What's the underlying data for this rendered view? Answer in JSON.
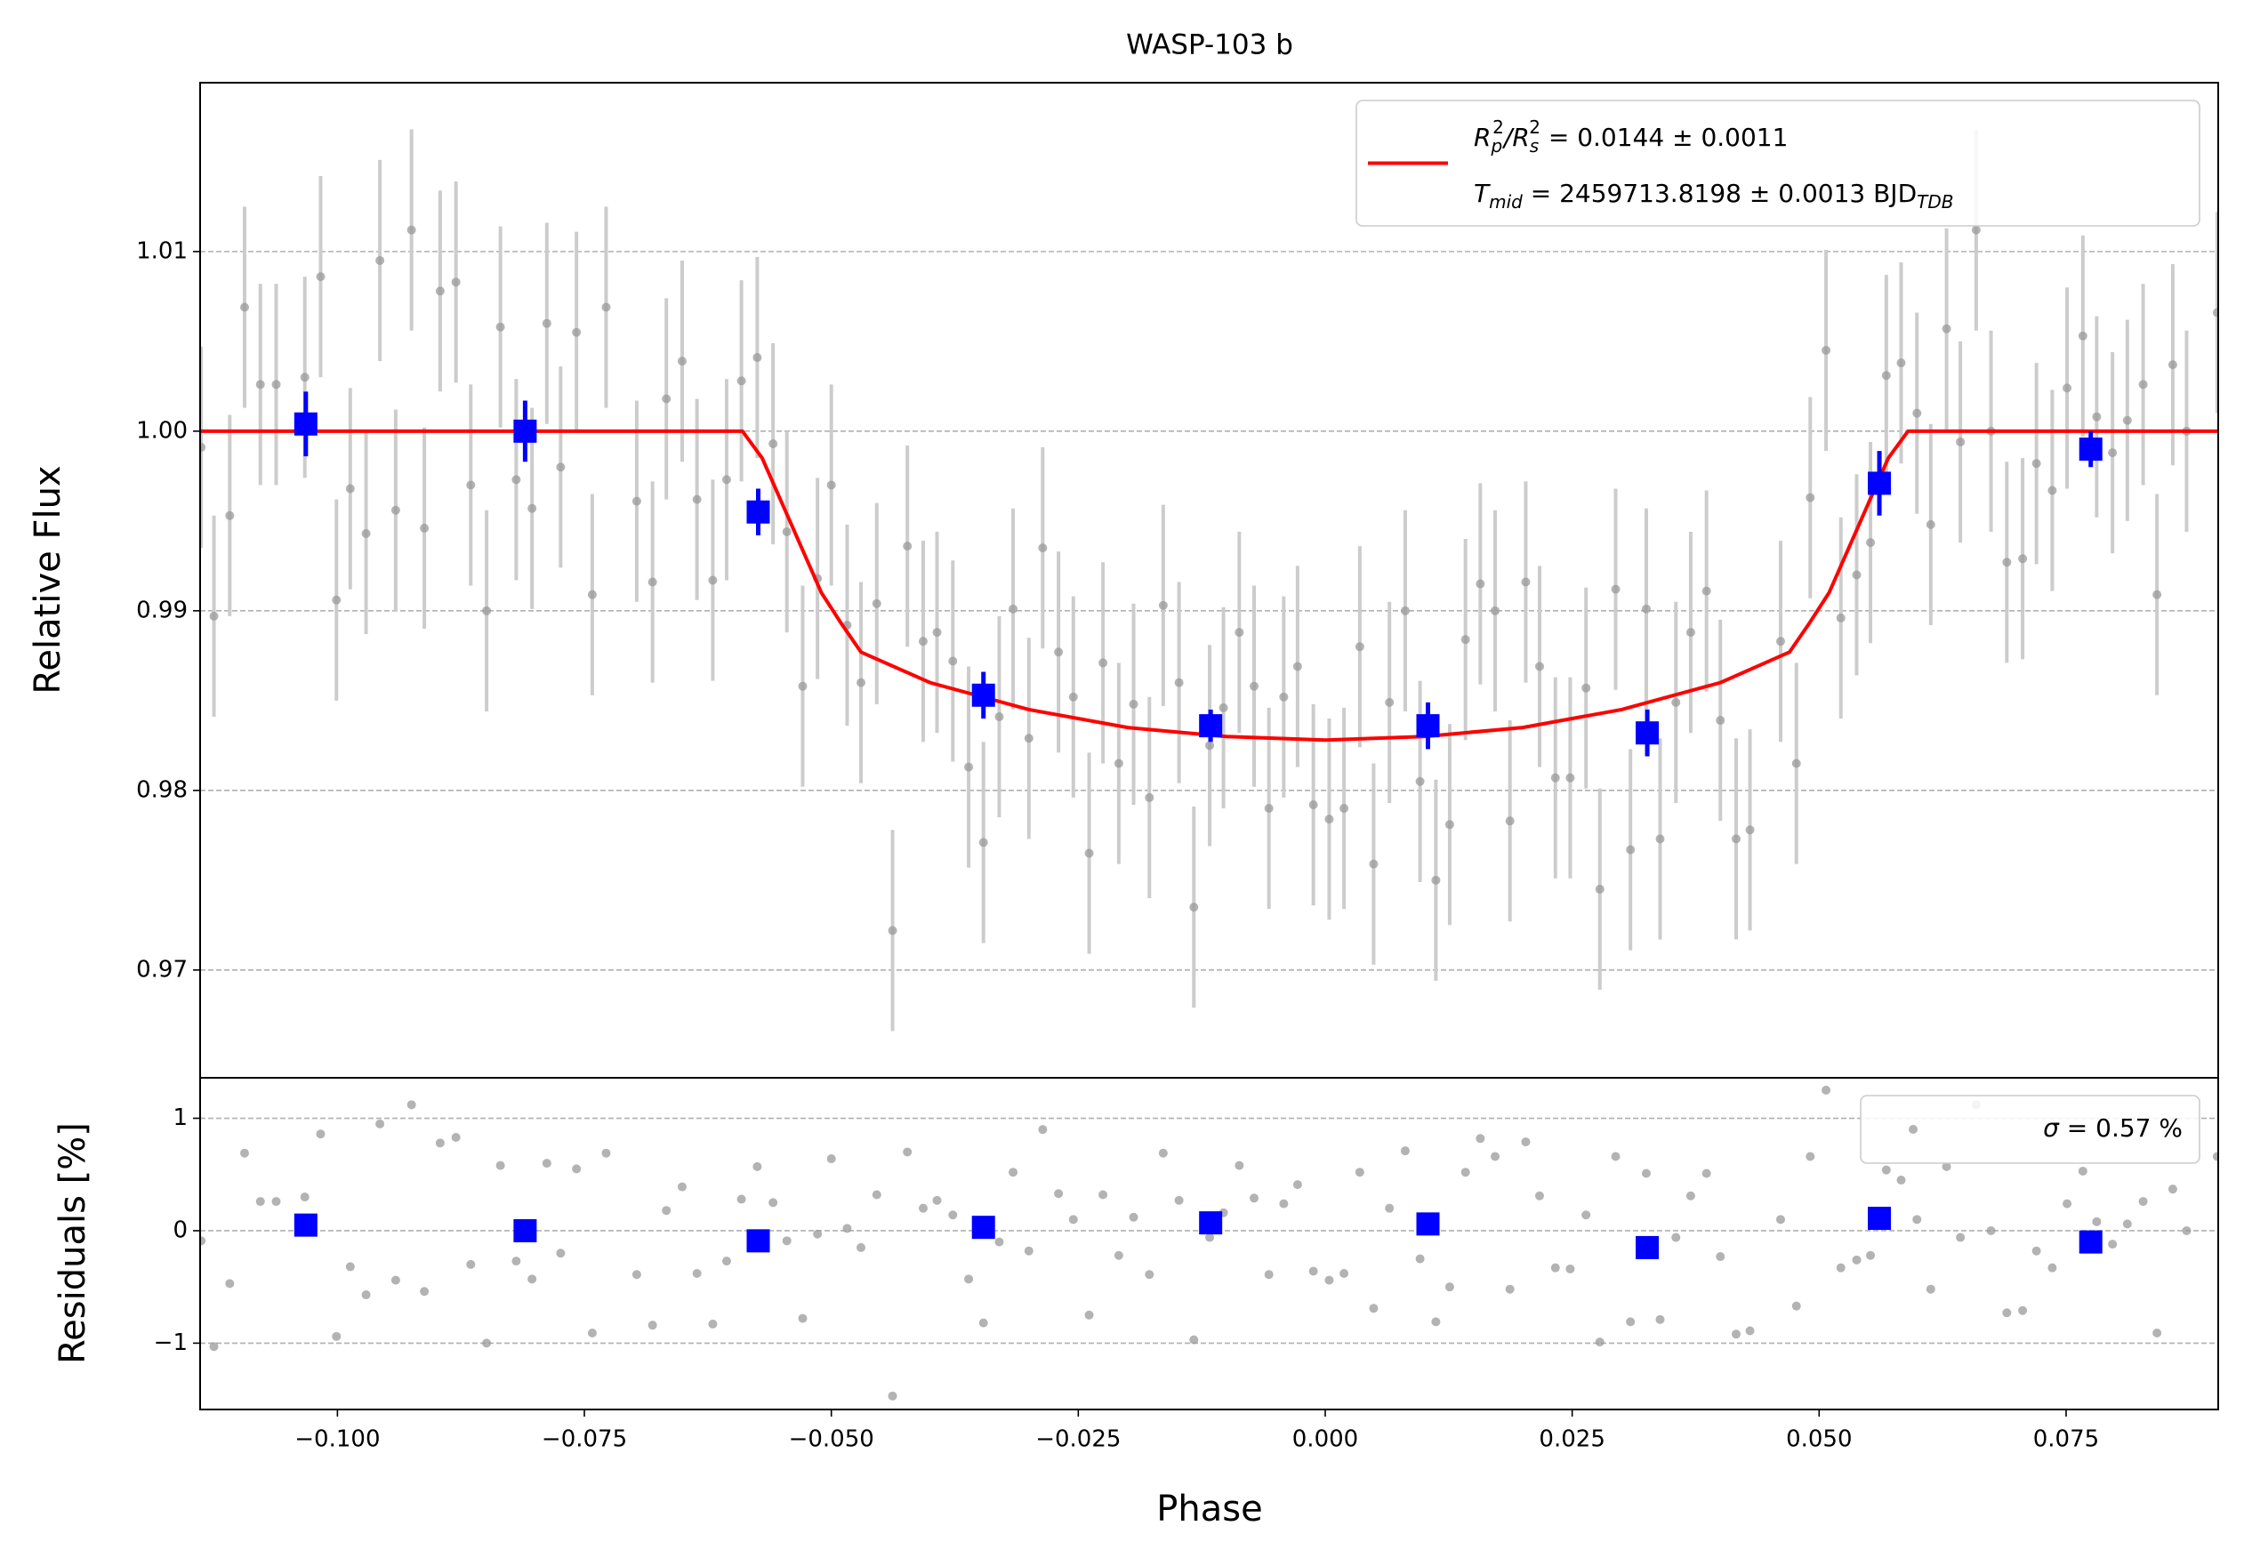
{
  "chart_data": [
    {
      "type": "scatter",
      "title": "WASP-103 b",
      "ylabel": "Relative Flux",
      "xlim": [
        -0.1139,
        0.0904
      ],
      "ylim": [
        0.964,
        1.0194
      ],
      "yticks": [
        0.97,
        0.98,
        0.99,
        {
          "value": 1.0,
          "label": "1.00"
        },
        1.01
      ],
      "grid": true,
      "legend_loc": "upper right",
      "series": [
        {
          "marker": "o",
          "color": "#999999",
          "ecolor": "#cccccc",
          "error": 0.0056,
          "x": [
            -0.1138,
            -0.1125,
            -0.1109,
            -0.1094,
            -0.1078,
            -0.1062,
            -0.1033,
            -0.1017,
            -0.1001,
            -0.0987,
            -0.0971,
            -0.0957,
            -0.0941,
            -0.0925,
            -0.0912,
            -0.0896,
            -0.088,
            -0.0865,
            -0.0849,
            -0.0835,
            -0.0819,
            -0.0803,
            -0.0788,
            -0.0774,
            -0.0758,
            -0.0742,
            -0.0728,
            -0.0697,
            -0.0681,
            -0.0667,
            -0.0651,
            -0.0636,
            -0.062,
            -0.0606,
            -0.0591,
            -0.0575,
            -0.0559,
            -0.0545,
            -0.0529,
            -0.0514,
            -0.05,
            -0.0484,
            -0.047,
            -0.0454,
            -0.0438,
            -0.0423,
            -0.0407,
            -0.0393,
            -0.0377,
            -0.0361,
            -0.0346,
            -0.033,
            -0.0316,
            -0.03,
            -0.0286,
            -0.027,
            -0.0255,
            -0.0239,
            -0.0225,
            -0.0209,
            -0.0194,
            -0.0178,
            -0.0164,
            -0.0148,
            -0.0133,
            -0.0117,
            -0.0103,
            -0.0087,
            -0.0072,
            -0.0057,
            -0.0042,
            -0.0028,
            -0.0012,
            0.0004,
            0.0019,
            0.0035,
            0.0049,
            0.0065,
            0.0081,
            0.0096,
            0.0112,
            0.0126,
            0.0142,
            0.0157,
            0.0172,
            0.0187,
            0.0203,
            0.0217,
            0.0233,
            0.0248,
            0.0264,
            0.0278,
            0.0294,
            0.0309,
            0.0325,
            0.0339,
            0.0355,
            0.037,
            0.0386,
            0.04,
            0.0416,
            0.043,
            0.0461,
            0.0477,
            0.0491,
            0.0507,
            0.0522,
            0.0538,
            0.0552,
            0.0568,
            0.0583,
            0.0599,
            0.0613,
            0.0629,
            0.0643,
            0.0659,
            0.0674,
            0.069,
            0.0706,
            0.072,
            0.0736,
            0.0751,
            0.0767,
            0.0781,
            0.0797,
            0.0812,
            0.0828,
            0.0842,
            0.0858,
            0.0872,
            0.0903
          ],
          "values": [
            0.9991,
            0.9897,
            0.9953,
            1.0069,
            1.0026,
            1.0026,
            1.003,
            1.0086,
            0.9906,
            0.9968,
            0.9943,
            1.0095,
            0.9956,
            1.0112,
            0.9946,
            1.0078,
            1.0083,
            0.997,
            0.99,
            1.0058,
            0.9973,
            0.9957,
            1.006,
            0.998,
            1.0055,
            0.9909,
            1.0069,
            0.9961,
            0.9916,
            1.0018,
            1.0039,
            0.9962,
            0.9917,
            0.9973,
            1.0028,
            1.0041,
            0.9993,
            0.9944,
            0.9858,
            0.9918,
            0.997,
            0.9892,
            0.986,
            0.9904,
            0.9722,
            0.9936,
            0.9883,
            0.9888,
            0.9872,
            0.9813,
            0.9771,
            0.9841,
            0.9901,
            0.9829,
            0.9935,
            0.9877,
            0.9852,
            0.9765,
            0.9871,
            0.9815,
            0.9848,
            0.9796,
            0.9903,
            0.986,
            0.9735,
            0.9825,
            0.9846,
            0.9888,
            0.9858,
            0.979,
            0.9852,
            0.9869,
            0.9792,
            0.9784,
            0.979,
            0.988,
            0.9759,
            0.9849,
            0.99,
            0.9805,
            0.975,
            0.9781,
            0.9884,
            0.9915,
            0.99,
            0.9783,
            0.9916,
            0.9869,
            0.9807,
            0.9807,
            0.9857,
            0.9745,
            0.9912,
            0.9767,
            0.9901,
            0.9773,
            0.9849,
            0.9888,
            0.9911,
            0.9839,
            0.9773,
            0.9778,
            0.9883,
            0.9815,
            0.9963,
            1.0045,
            0.9896,
            0.992,
            0.9938,
            1.0031,
            1.0038,
            1.001,
            0.9948,
            1.0057,
            0.9994,
            1.0112,
            1.0,
            0.9927,
            0.9929,
            0.9982,
            0.9967,
            1.0024,
            1.0053,
            1.0008,
            0.9988,
            1.0006,
            1.0026,
            0.9909,
            1.0037,
            1.0,
            1.0066
          ]
        },
        {
          "type": "line",
          "color": "#ff0000",
          "label": [
            [
              {
                "text": "R",
                "style": "italic"
              },
              {
                "text": "p",
                "style": "sub-italic"
              },
              {
                "text": "2",
                "style": "sup"
              },
              {
                "text": "/R",
                "style": "italic"
              },
              {
                "text": "s",
                "style": "sub-italic"
              },
              {
                "text": "2",
                "style": "sup"
              },
              {
                "text": " = 0.0144 ± 0.0011",
                "style": "normal"
              }
            ],
            [
              {
                "text": "T",
                "style": "italic"
              },
              {
                "text": "mid",
                "style": "sub-italic"
              },
              {
                "text": " = 2459713.8198 ± 0.0013 BJD",
                "style": "normal"
              },
              {
                "text": "TDB",
                "style": "sub-italic"
              }
            ]
          ],
          "x": [
            -0.1139,
            -0.059,
            -0.057,
            -0.055,
            -0.053,
            -0.051,
            -0.049,
            -0.047,
            -0.04,
            -0.03,
            -0.02,
            -0.01,
            0,
            0.01,
            0.02,
            0.03,
            0.04,
            0.047,
            0.049,
            0.051,
            0.053,
            0.055,
            0.057,
            0.059,
            0.0904
          ],
          "values": [
            1.0,
            1.0,
            0.9985,
            0.996,
            0.9935,
            0.991,
            0.9893,
            0.9877,
            0.986,
            0.9845,
            0.9835,
            0.983,
            0.9828,
            0.983,
            0.9835,
            0.9845,
            0.986,
            0.9877,
            0.9893,
            0.991,
            0.9935,
            0.996,
            0.9985,
            1.0,
            1.0
          ]
        },
        {
          "marker": "s",
          "color": "#0000ff",
          "ecolor": "#0000ff",
          "x": [
            -0.1032,
            -0.081,
            -0.0574,
            -0.0346,
            -0.0116,
            0.0104,
            0.0326,
            0.0561,
            0.0775
          ],
          "values": [
            1.0004,
            1.0,
            0.9955,
            0.9853,
            0.9836,
            0.9836,
            0.9832,
            0.9971,
            0.999
          ],
          "errors": [
            0.0018,
            0.0017,
            0.0013,
            0.0013,
            0.0009,
            0.0013,
            0.0013,
            0.0018,
            0.001
          ]
        }
      ]
    },
    {
      "type": "scatter",
      "xlabel": "Phase",
      "ylabel": "Residuals [%]",
      "xlim": [
        -0.1139,
        0.0904
      ],
      "ylim": [
        -1.59,
        1.36
      ],
      "xticks": [
        {
          "value": -0.1,
          "label": "−0.100"
        },
        {
          "value": -0.075,
          "label": "−0.075"
        },
        {
          "value": -0.05,
          "label": "−0.050"
        },
        {
          "value": -0.025,
          "label": "−0.025"
        },
        {
          "value": 0,
          "label": "0.000"
        },
        {
          "value": 0.025,
          "label": "0.025"
        },
        {
          "value": 0.05,
          "label": "0.050"
        },
        {
          "value": 0.075,
          "label": "0.075"
        }
      ],
      "yticks": [
        {
          "value": -1,
          "label": "−1"
        },
        0,
        1
      ],
      "grid": true,
      "legend_loc": "upper right",
      "series": [
        {
          "marker": "o",
          "color": "#999999",
          "label": [
            [
              {
                "text": "σ",
                "style": "italic"
              },
              {
                "text": " = 0.57 %",
                "style": "normal"
              }
            ]
          ],
          "x": [
            -0.1138,
            -0.1125,
            -0.1109,
            -0.1094,
            -0.1078,
            -0.1062,
            -0.1033,
            -0.1017,
            -0.1001,
            -0.0987,
            -0.0971,
            -0.0957,
            -0.0941,
            -0.0925,
            -0.0912,
            -0.0896,
            -0.088,
            -0.0865,
            -0.0849,
            -0.0835,
            -0.0819,
            -0.0803,
            -0.0788,
            -0.0774,
            -0.0758,
            -0.0742,
            -0.0728,
            -0.0697,
            -0.0681,
            -0.0667,
            -0.0651,
            -0.0636,
            -0.062,
            -0.0606,
            -0.0591,
            -0.0575,
            -0.0559,
            -0.0545,
            -0.0529,
            -0.0514,
            -0.05,
            -0.0484,
            -0.047,
            -0.0454,
            -0.0438,
            -0.0423,
            -0.0407,
            -0.0393,
            -0.0377,
            -0.0361,
            -0.0346,
            -0.033,
            -0.0316,
            -0.03,
            -0.0286,
            -0.027,
            -0.0255,
            -0.0239,
            -0.0225,
            -0.0209,
            -0.0194,
            -0.0178,
            -0.0164,
            -0.0148,
            -0.0133,
            -0.0117,
            -0.0103,
            -0.0087,
            -0.0072,
            -0.0057,
            -0.0042,
            -0.0028,
            -0.0012,
            0.0004,
            0.0019,
            0.0035,
            0.0049,
            0.0065,
            0.0081,
            0.0096,
            0.0112,
            0.0126,
            0.0142,
            0.0157,
            0.0172,
            0.0187,
            0.0203,
            0.0217,
            0.0233,
            0.0248,
            0.0264,
            0.0278,
            0.0294,
            0.0309,
            0.0325,
            0.0339,
            0.0355,
            0.037,
            0.0386,
            0.04,
            0.0416,
            0.043,
            0.0461,
            0.0477,
            0.0491,
            0.0507,
            0.0522,
            0.0538,
            0.0552,
            0.0568,
            0.0583,
            0.0599,
            0.0613,
            0.0629,
            0.0643,
            0.0659,
            0.0674,
            0.069,
            0.0706,
            0.072,
            0.0736,
            0.0751,
            0.0767,
            0.0781,
            0.0797,
            0.0812,
            0.0828,
            0.0842,
            0.0858,
            0.0872,
            0.0903
          ],
          "values": [
            -0.09,
            -1.03,
            -0.47,
            0.69,
            0.26,
            0.26,
            0.3,
            0.86,
            -0.94,
            -0.32,
            -0.57,
            0.95,
            -0.44,
            1.12,
            -0.54,
            0.78,
            0.83,
            -0.3,
            -1.0,
            0.58,
            -0.27,
            -0.43,
            0.6,
            -0.2,
            0.55,
            -0.91,
            0.69,
            -0.39,
            -0.84,
            0.18,
            0.39,
            -0.38,
            -0.83,
            -0.27,
            0.28,
            0.57,
            0.25,
            -0.09,
            -0.78,
            -0.03,
            0.64,
            0.02,
            -0.15,
            0.32,
            -1.47,
            0.7,
            0.2,
            0.27,
            0.14,
            -0.43,
            -0.82,
            -0.1,
            0.52,
            -0.18,
            0.9,
            0.33,
            0.1,
            -0.75,
            0.32,
            -0.22,
            0.12,
            -0.39,
            0.69,
            0.27,
            -0.97,
            -0.06,
            0.16,
            0.58,
            0.29,
            -0.39,
            0.24,
            0.41,
            -0.36,
            -0.44,
            -0.38,
            0.52,
            -0.69,
            0.2,
            0.71,
            -0.25,
            -0.81,
            -0.5,
            0.52,
            0.82,
            0.66,
            -0.52,
            0.79,
            0.31,
            -0.33,
            -0.34,
            0.14,
            -0.99,
            0.66,
            -0.81,
            0.51,
            -0.79,
            -0.06,
            0.31,
            0.51,
            -0.23,
            -0.92,
            -0.89,
            0.1,
            -0.67,
            0.66,
            1.25,
            -0.33,
            -0.26,
            -0.22,
            0.54,
            0.45,
            0.1,
            -0.52,
            0.57,
            -0.06,
            1.12,
            0.0,
            -0.73,
            -0.71,
            -0.18,
            -0.33,
            0.24,
            0.53,
            0.08,
            -0.12,
            0.06,
            0.26,
            -0.91,
            0.37,
            0.0,
            0.66
          ]
        },
        {
          "marker": "s",
          "color": "#0000ff",
          "x": [
            -0.1032,
            -0.081,
            -0.0574,
            -0.0346,
            -0.0116,
            0.0104,
            0.0326,
            0.0561,
            0.0775
          ],
          "values": [
            0.05,
            0.0,
            -0.09,
            0.03,
            0.07,
            0.06,
            -0.15,
            0.11,
            -0.1
          ]
        }
      ]
    }
  ]
}
